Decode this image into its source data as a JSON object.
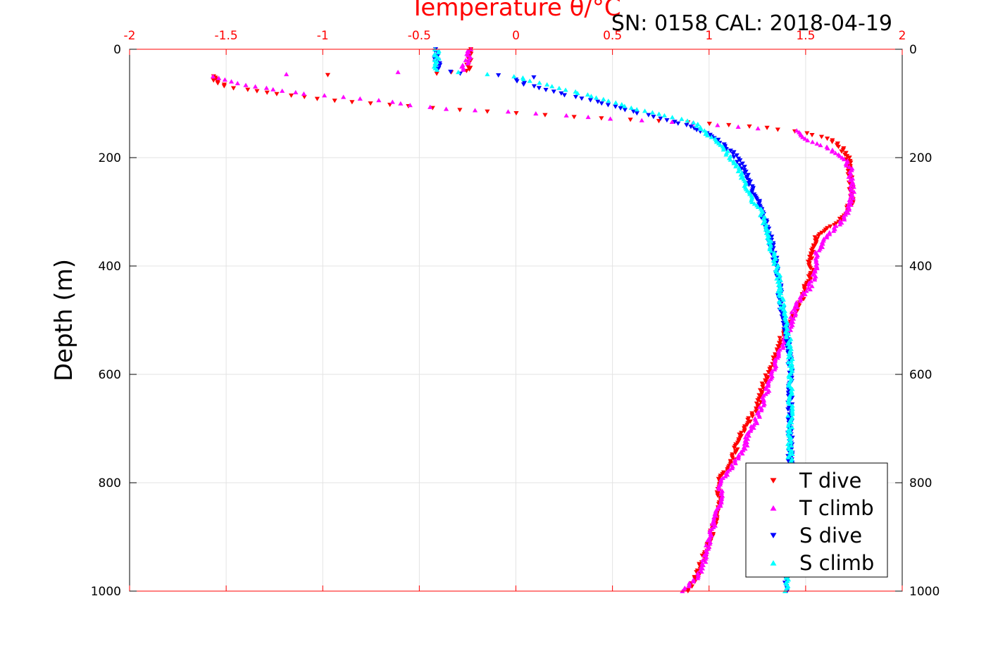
{
  "chart_data": {
    "type": "scatter",
    "title": "Temperature θ/°C",
    "subtitle": "SN: 0158  CAL: 2018-04-19",
    "xlabel": "Temperature θ/°C",
    "ylabel": "Depth (m)",
    "xlim": [
      -2,
      2
    ],
    "ylim": [
      0,
      1000
    ],
    "y_reversed": true,
    "x_ticks": [
      "-2",
      "-1.5",
      "-1",
      "-0.5",
      "0",
      "0.5",
      "1",
      "1.5",
      "2"
    ],
    "y_ticks": [
      "0",
      "200",
      "400",
      "600",
      "800",
      "1000"
    ],
    "grid": true,
    "legend_position": "bottom-right",
    "series": [
      {
        "name": "T dive",
        "color": "#ff0000",
        "marker": "triangle-down",
        "points": [
          [
            -0.24,
            0
          ],
          [
            -0.24,
            20
          ],
          [
            -0.25,
            40
          ],
          [
            -0.4,
            45
          ],
          [
            -1.57,
            50
          ],
          [
            -1.56,
            55
          ],
          [
            -1.55,
            60
          ],
          [
            -1.5,
            68
          ],
          [
            -1.45,
            72
          ],
          [
            -1.3,
            80
          ],
          [
            -1.1,
            88
          ],
          [
            -0.95,
            95
          ],
          [
            -0.75,
            100
          ],
          [
            -0.55,
            105
          ],
          [
            -0.3,
            112
          ],
          [
            0.0,
            118
          ],
          [
            0.3,
            125
          ],
          [
            0.6,
            130
          ],
          [
            0.9,
            135
          ],
          [
            1.1,
            140
          ],
          [
            1.3,
            145
          ],
          [
            1.5,
            155
          ],
          [
            1.62,
            165
          ],
          [
            1.68,
            180
          ],
          [
            1.72,
            200
          ],
          [
            1.73,
            240
          ],
          [
            1.74,
            280
          ],
          [
            1.7,
            310
          ],
          [
            1.62,
            330
          ],
          [
            1.55,
            350
          ],
          [
            1.52,
            380
          ],
          [
            1.53,
            410
          ],
          [
            1.5,
            440
          ],
          [
            1.47,
            470
          ],
          [
            1.42,
            500
          ],
          [
            1.38,
            530
          ],
          [
            1.35,
            560
          ],
          [
            1.32,
            590
          ],
          [
            1.28,
            620
          ],
          [
            1.25,
            660
          ],
          [
            1.2,
            690
          ],
          [
            1.15,
            720
          ],
          [
            1.12,
            760
          ],
          [
            1.06,
            790
          ],
          [
            1.05,
            830
          ],
          [
            1.03,
            870
          ],
          [
            1.0,
            910
          ],
          [
            0.96,
            950
          ],
          [
            0.93,
            980
          ],
          [
            0.88,
            1000
          ]
        ]
      },
      {
        "name": "T climb",
        "color": "#ff00ff",
        "marker": "triangle-up",
        "points": [
          [
            -0.24,
            0
          ],
          [
            -0.25,
            20
          ],
          [
            -0.28,
            38
          ],
          [
            -0.6,
            42
          ],
          [
            -1.2,
            46
          ],
          [
            -1.58,
            50
          ],
          [
            -1.5,
            56
          ],
          [
            -1.4,
            66
          ],
          [
            -1.25,
            74
          ],
          [
            -1.1,
            82
          ],
          [
            -0.9,
            88
          ],
          [
            -0.7,
            94
          ],
          [
            -0.55,
            103
          ],
          [
            -0.35,
            110
          ],
          [
            -0.05,
            115
          ],
          [
            0.25,
            122
          ],
          [
            0.5,
            128
          ],
          [
            0.8,
            134
          ],
          [
            1.05,
            140
          ],
          [
            1.25,
            146
          ],
          [
            1.45,
            150
          ],
          [
            1.5,
            165
          ],
          [
            1.6,
            180
          ],
          [
            1.7,
            200
          ],
          [
            1.73,
            220
          ],
          [
            1.74,
            260
          ],
          [
            1.73,
            290
          ],
          [
            1.68,
            320
          ],
          [
            1.6,
            350
          ],
          [
            1.55,
            380
          ],
          [
            1.55,
            410
          ],
          [
            1.52,
            440
          ],
          [
            1.45,
            470
          ],
          [
            1.43,
            500
          ],
          [
            1.4,
            530
          ],
          [
            1.36,
            560
          ],
          [
            1.33,
            600
          ],
          [
            1.3,
            630
          ],
          [
            1.27,
            660
          ],
          [
            1.24,
            690
          ],
          [
            1.2,
            710
          ],
          [
            1.18,
            740
          ],
          [
            1.12,
            770
          ],
          [
            1.06,
            800
          ],
          [
            1.06,
            830
          ],
          [
            1.03,
            870
          ],
          [
            1.0,
            900
          ],
          [
            0.98,
            940
          ],
          [
            0.95,
            970
          ],
          [
            0.86,
            1000
          ]
        ]
      },
      {
        "name": "S dive",
        "color": "#0000ff",
        "marker": "triangle-down",
        "points": [
          [
            -0.41,
            0
          ],
          [
            -0.41,
            20
          ],
          [
            -0.4,
            38
          ],
          [
            -0.3,
            45
          ],
          [
            -0.1,
            48
          ],
          [
            0.1,
            52
          ],
          [
            0.0,
            56
          ],
          [
            0.05,
            65
          ],
          [
            0.15,
            75
          ],
          [
            0.3,
            88
          ],
          [
            0.45,
            100
          ],
          [
            0.6,
            115
          ],
          [
            0.75,
            128
          ],
          [
            0.88,
            140
          ],
          [
            0.98,
            155
          ],
          [
            1.05,
            170
          ],
          [
            1.12,
            190
          ],
          [
            1.18,
            220
          ],
          [
            1.21,
            250
          ],
          [
            1.25,
            280
          ],
          [
            1.28,
            310
          ],
          [
            1.31,
            340
          ],
          [
            1.33,
            370
          ],
          [
            1.35,
            400
          ],
          [
            1.36,
            430
          ],
          [
            1.37,
            460
          ],
          [
            1.38,
            490
          ],
          [
            1.4,
            520
          ],
          [
            1.42,
            560
          ],
          [
            1.42,
            600
          ],
          [
            1.42,
            640
          ],
          [
            1.42,
            680
          ],
          [
            1.42,
            720
          ],
          [
            1.42,
            760
          ],
          [
            1.42,
            800
          ],
          [
            1.42,
            840
          ],
          [
            1.42,
            880
          ],
          [
            1.42,
            920
          ],
          [
            1.41,
            960
          ],
          [
            1.4,
            1000
          ]
        ]
      },
      {
        "name": "S climb",
        "color": "#00ffff",
        "marker": "triangle-up",
        "points": [
          [
            -0.41,
            0
          ],
          [
            -0.41,
            20
          ],
          [
            -0.42,
            38
          ],
          [
            -0.3,
            42
          ],
          [
            -0.15,
            46
          ],
          [
            0.0,
            50
          ],
          [
            0.05,
            55
          ],
          [
            0.15,
            65
          ],
          [
            0.3,
            78
          ],
          [
            0.45,
            92
          ],
          [
            0.6,
            108
          ],
          [
            0.78,
            122
          ],
          [
            0.92,
            135
          ],
          [
            0.97,
            150
          ],
          [
            1.02,
            165
          ],
          [
            1.08,
            185
          ],
          [
            1.13,
            210
          ],
          [
            1.18,
            240
          ],
          [
            1.21,
            270
          ],
          [
            1.27,
            300
          ],
          [
            1.3,
            330
          ],
          [
            1.32,
            360
          ],
          [
            1.34,
            390
          ],
          [
            1.36,
            420
          ],
          [
            1.37,
            450
          ],
          [
            1.38,
            480
          ],
          [
            1.4,
            510
          ],
          [
            1.42,
            550
          ],
          [
            1.42,
            590
          ],
          [
            1.42,
            630
          ],
          [
            1.42,
            670
          ],
          [
            1.42,
            710
          ],
          [
            1.42,
            750
          ],
          [
            1.42,
            800
          ],
          [
            1.42,
            840
          ],
          [
            1.41,
            880
          ],
          [
            1.41,
            920
          ],
          [
            1.41,
            960
          ],
          [
            1.4,
            1000
          ]
        ]
      }
    ]
  }
}
